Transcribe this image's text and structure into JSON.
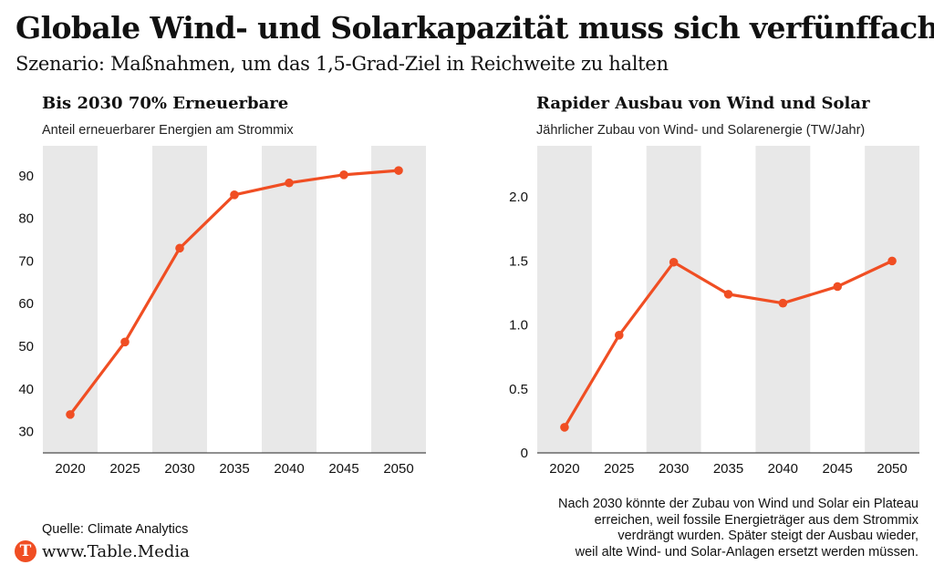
{
  "header": {
    "title": "Globale Wind- und Solarkapazität muss sich verfünffachen",
    "subtitle": "Szenario: Maßnahmen, um das 1,5-Grad-Ziel in Reichweite zu halten"
  },
  "colors": {
    "line": "#f04e23",
    "band": "#e8e8e8",
    "axis": "#222222"
  },
  "chart_data": [
    {
      "type": "line",
      "title": "Bis 2030 70% Erneuerbare",
      "subtitle": "Anteil erneuerbarer Energien am Strommix",
      "x": [
        2020,
        2025,
        2030,
        2035,
        2040,
        2045,
        2050
      ],
      "x_ticks": [
        "2020",
        "2025",
        "2030",
        "2035",
        "2040",
        "2045",
        "2050"
      ],
      "y": [
        34,
        51,
        73,
        85.5,
        88.3,
        90.2,
        91.2
      ],
      "y_ticks": [
        "30",
        "40",
        "50",
        "60",
        "70",
        "80",
        "90"
      ],
      "ylim": [
        25,
        97
      ],
      "grid": "alternating vertical bands"
    },
    {
      "type": "line",
      "title": "Rapider Ausbau von Wind und Solar",
      "subtitle": "Jährlicher Zubau von Wind- und Solarenergie (TW/Jahr)",
      "x": [
        2020,
        2025,
        2030,
        2035,
        2040,
        2045,
        2050
      ],
      "x_ticks": [
        "2020",
        "2025",
        "2030",
        "2035",
        "2040",
        "2045",
        "2050"
      ],
      "y": [
        0.2,
        0.92,
        1.49,
        1.24,
        1.17,
        1.3,
        1.5
      ],
      "y_ticks": [
        "0",
        "0.5",
        "1.0",
        "1.5",
        "2.0"
      ],
      "ylim": [
        0,
        2.4
      ],
      "grid": "alternating vertical bands"
    }
  ],
  "footer": {
    "source": "Quelle: Climate Analytics",
    "logo_letter": "T",
    "brand": "www.Table.Media",
    "note_lines": [
      "Nach 2030 könnte der Zubau von Wind und Solar ein Plateau",
      "erreichen, weil fossile Energieträger aus dem Strommix",
      "verdrängt wurden. Später steigt der Ausbau wieder,",
      "weil alte Wind- und Solar-Anlagen ersetzt werden müssen."
    ]
  }
}
